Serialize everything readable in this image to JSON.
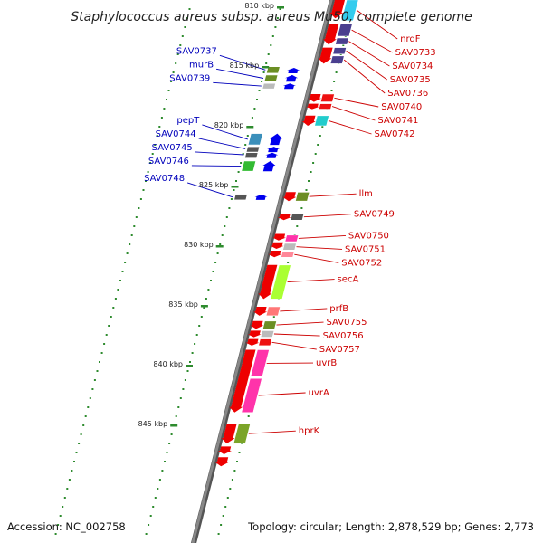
{
  "title": "Staphylococcus aureus subsp. aureus Mu50, complete genome",
  "accession": "Accession: NC_002758",
  "topology": "Topology: circular; Length: 2,878,529 bp; Genes: 2,773",
  "colors": {
    "forward_label": "#cc0000",
    "reverse_label": "#0000bb",
    "backbone": "#888888",
    "tick": "#2e8b2e"
  },
  "kbp_marks": [
    {
      "label": "810 kbp",
      "kbp": 810
    },
    {
      "label": "815 kbp",
      "kbp": 815
    },
    {
      "label": "820 kbp",
      "kbp": 820
    },
    {
      "label": "825 kbp",
      "kbp": 825
    },
    {
      "label": "830 kbp",
      "kbp": 830
    },
    {
      "label": "835 kbp",
      "kbp": 835
    },
    {
      "label": "840 kbp",
      "kbp": 840
    },
    {
      "label": "845 kbp",
      "kbp": 845
    }
  ],
  "forward_genes": [
    {
      "name": "nrdF",
      "start": 809.3,
      "end": 811.2,
      "color": "#33ccee"
    },
    {
      "name": "SAV0733",
      "start": 811.3,
      "end": 812.5,
      "color": "#4a3f8f"
    },
    {
      "name": "SAV0734",
      "start": 812.5,
      "end": 813.2,
      "color": "#4a3f8f"
    },
    {
      "name": "SAV0735",
      "start": 813.3,
      "end": 814.0,
      "color": "#4a3f8f"
    },
    {
      "name": "SAV0736",
      "start": 814.0,
      "end": 814.8,
      "color": "#4a3f8f"
    },
    {
      "name": "SAV0740",
      "start": 817.2,
      "end": 818.0,
      "color": "#ee1111"
    },
    {
      "name": "SAV0741",
      "start": 818.0,
      "end": 818.6,
      "color": "#ee1111"
    },
    {
      "name": "SAV0742",
      "start": 819.0,
      "end": 820.0,
      "color": "#22cccc"
    },
    {
      "name": "llm",
      "start": 825.4,
      "end": 826.3,
      "color": "#6b8e23"
    },
    {
      "name": "SAV0749",
      "start": 827.2,
      "end": 827.9,
      "color": "#555555"
    },
    {
      "name": "SAV0750",
      "start": 829.0,
      "end": 829.7,
      "color": "#ff33aa"
    },
    {
      "name": "SAV0751",
      "start": 829.7,
      "end": 830.4,
      "color": "#bbbbbb"
    },
    {
      "name": "SAV0752",
      "start": 830.4,
      "end": 831.0,
      "color": "#ff8899"
    },
    {
      "name": "secA",
      "start": 831.5,
      "end": 834.5,
      "color": "#aaff33"
    },
    {
      "name": "prfB",
      "start": 835.0,
      "end": 835.9,
      "color": "#ff7777"
    },
    {
      "name": "SAV0755",
      "start": 836.2,
      "end": 837.0,
      "color": "#6b8e23"
    },
    {
      "name": "SAV0756",
      "start": 837.0,
      "end": 837.7,
      "color": "#bbbbbb"
    },
    {
      "name": "SAV0757",
      "start": 837.7,
      "end": 838.4,
      "color": "#ee1111"
    },
    {
      "name": "uvrB",
      "start": 838.6,
      "end": 841.0,
      "color": "#ff33aa"
    },
    {
      "name": "uvrA",
      "start": 841.0,
      "end": 844.0,
      "color": "#ff33aa"
    },
    {
      "name": "hprK",
      "start": 844.8,
      "end": 846.6,
      "color": "#7ba428"
    }
  ],
  "reverse_genes": [
    {
      "name": "SAV0737",
      "start": 814.9,
      "end": 815.6,
      "color": "#6b8e23"
    },
    {
      "name": "murB",
      "start": 815.6,
      "end": 816.3,
      "color": "#6b8e23"
    },
    {
      "name": "SAV0739",
      "start": 816.3,
      "end": 816.9,
      "color": "#bbbbbb"
    },
    {
      "name": "pepT",
      "start": 820.5,
      "end": 821.6,
      "color": "#3a8fbb"
    },
    {
      "name": "SAV0744",
      "start": 821.6,
      "end": 822.1,
      "color": "#555555"
    },
    {
      "name": "SAV0745",
      "start": 822.1,
      "end": 822.6,
      "color": "#555555"
    },
    {
      "name": "SAV0746",
      "start": 822.8,
      "end": 823.8,
      "color": "#33bb33"
    },
    {
      "name": "SAV0748",
      "start": 825.6,
      "end": 826.2,
      "color": "#555555"
    }
  ],
  "cds_forward": [
    {
      "start": 809.0,
      "end": 811.0
    },
    {
      "start": 811.3,
      "end": 813.2
    },
    {
      "start": 813.3,
      "end": 814.8
    },
    {
      "start": 817.2,
      "end": 818.0
    },
    {
      "start": 818.0,
      "end": 818.6
    },
    {
      "start": 819.0,
      "end": 820.0
    },
    {
      "start": 825.4,
      "end": 826.3
    },
    {
      "start": 827.2,
      "end": 827.9
    },
    {
      "start": 828.9,
      "end": 829.6
    },
    {
      "start": 829.6,
      "end": 830.3
    },
    {
      "start": 830.3,
      "end": 831.0
    },
    {
      "start": 831.5,
      "end": 834.5
    },
    {
      "start": 835.0,
      "end": 835.9
    },
    {
      "start": 836.2,
      "end": 837.0
    },
    {
      "start": 837.0,
      "end": 837.7
    },
    {
      "start": 837.7,
      "end": 838.4
    },
    {
      "start": 838.6,
      "end": 844.0
    },
    {
      "start": 844.8,
      "end": 846.6
    },
    {
      "start": 846.7,
      "end": 847.5
    },
    {
      "start": 847.6,
      "end": 848.5
    }
  ],
  "cds_reverse": [
    {
      "start": 815.0,
      "end": 815.6
    },
    {
      "start": 815.6,
      "end": 816.3
    },
    {
      "start": 816.3,
      "end": 816.9
    },
    {
      "start": 820.5,
      "end": 821.6
    },
    {
      "start": 821.6,
      "end": 822.1
    },
    {
      "start": 822.1,
      "end": 822.6
    },
    {
      "start": 822.8,
      "end": 823.8
    },
    {
      "start": 825.6,
      "end": 826.2
    }
  ]
}
